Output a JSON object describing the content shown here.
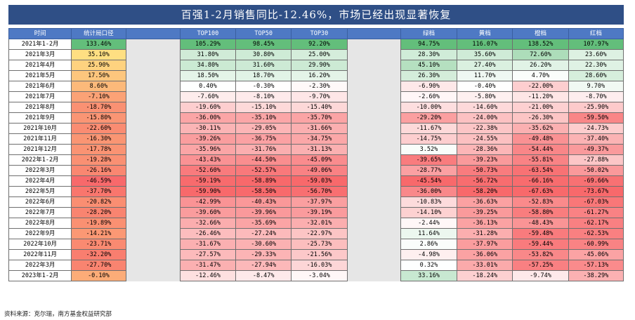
{
  "title": "百强1-2月销售同比-12.46%，市场已经出现显著恢复",
  "footer": "资料来源：克尔瑞，南方基金权益研究部",
  "headers": [
    "时间",
    "统计局口径",
    "TOP100",
    "TOP50",
    "TOP30",
    "绿档",
    "黄档",
    "橙档",
    "红档"
  ],
  "rows": [
    [
      "2021年1-2月",
      "133.46%",
      "105.29%",
      "98.45%",
      "92.20%",
      "94.75%",
      "116.07%",
      "138.52%",
      "107.97%"
    ],
    [
      "2021年3月",
      "35.10%",
      "31.80%",
      "30.80%",
      "25.00%",
      "28.30%",
      "35.60%",
      "72.60%",
      "23.60%"
    ],
    [
      "2021年4月",
      "25.90%",
      "34.80%",
      "31.60%",
      "29.90%",
      "45.10%",
      "27.40%",
      "26.20%",
      "22.30%"
    ],
    [
      "2021年5月",
      "17.50%",
      "18.50%",
      "18.70%",
      "16.20%",
      "26.30%",
      "11.70%",
      "4.70%",
      "28.60%"
    ],
    [
      "2021年6月",
      "8.60%",
      "0.40%",
      "-0.30%",
      "-2.30%",
      "-6.90%",
      "-0.40%",
      "-22.00%",
      "9.70%"
    ],
    [
      "2021年7月",
      "-7.10%",
      "-7.60%",
      "-8.10%",
      "-9.70%",
      "-2.60%",
      "-5.80%",
      "-11.20%",
      "-8.70%"
    ],
    [
      "2021年8月",
      "-18.70%",
      "-19.60%",
      "-15.10%",
      "-15.40%",
      "-10.00%",
      "-14.60%",
      "-21.00%",
      "-25.90%"
    ],
    [
      "2021年9月",
      "-15.80%",
      "-36.00%",
      "-35.10%",
      "-35.70%",
      "-29.20%",
      "-24.00%",
      "-26.30%",
      "-59.50%"
    ],
    [
      "2021年10月",
      "-22.60%",
      "-30.11%",
      "-29.05%",
      "-31.66%",
      "-11.67%",
      "-22.38%",
      "-35.62%",
      "-24.73%"
    ],
    [
      "2021年11月",
      "-16.30%",
      "-39.26%",
      "-36.75%",
      "-34.75%",
      "-14.75%",
      "-24.55%",
      "-49.48%",
      "-37.40%"
    ],
    [
      "2021年12月",
      "-17.78%",
      "-35.96%",
      "-31.76%",
      "-31.13%",
      "3.52%",
      "-28.36%",
      "-54.44%",
      "-49.37%"
    ],
    [
      "2022年1-2月",
      "-19.28%",
      "-43.43%",
      "-44.50%",
      "-45.09%",
      "-39.65%",
      "-39.23%",
      "-55.81%",
      "-27.88%"
    ],
    [
      "2022年3月",
      "-26.16%",
      "-52.60%",
      "-52.57%",
      "-49.06%",
      "-28.77%",
      "-50.73%",
      "-63.54%",
      "-50.02%"
    ],
    [
      "2022年4月",
      "-46.59%",
      "-59.19%",
      "-58.89%",
      "-59.03%",
      "-45.54%",
      "-56.72%",
      "-66.16%",
      "-69.66%"
    ],
    [
      "2022年5月",
      "-37.70%",
      "-59.90%",
      "-58.50%",
      "-56.70%",
      "-36.00%",
      "-58.20%",
      "-67.63%",
      "-73.67%"
    ],
    [
      "2022年6月",
      "-20.82%",
      "-42.99%",
      "-40.43%",
      "-37.97%",
      "-10.83%",
      "-36.63%",
      "-52.83%",
      "-67.03%"
    ],
    [
      "2022年7月",
      "-28.20%",
      "-39.60%",
      "-39.96%",
      "-39.19%",
      "-14.10%",
      "-39.25%",
      "-58.80%",
      "-61.27%"
    ],
    [
      "2022年8月",
      "-19.89%",
      "-32.66%",
      "-35.69%",
      "-32.01%",
      "-2.44%",
      "-36.13%",
      "-48.43%",
      "-62.17%"
    ],
    [
      "2022年9月",
      "-14.21%",
      "-26.46%",
      "-27.24%",
      "-22.97%",
      "11.64%",
      "-31.28%",
      "-59.48%",
      "-62.53%"
    ],
    [
      "2022年10月",
      "-23.71%",
      "-31.67%",
      "-30.60%",
      "-25.73%",
      "2.86%",
      "-37.97%",
      "-59.44%",
      "-60.99%"
    ],
    [
      "2022年11月",
      "-32.20%",
      "-27.57%",
      "-29.33%",
      "-21.56%",
      "-4.98%",
      "-36.06%",
      "-53.82%",
      "-45.06%"
    ],
    [
      "2022年3月",
      "-27.70%",
      "-31.47%",
      "-27.94%",
      "-16.03%",
      "0.32%",
      "-33.01%",
      "-57.25%",
      "-57.13%"
    ],
    [
      "2023年1-2月",
      "-0.10%",
      "-12.46%",
      "-8.47%",
      "-3.04%",
      "33.16%",
      "-18.24%",
      "-9.74%",
      "-38.29%"
    ]
  ],
  "colors": {
    "title_bg": "#2f4f86",
    "header_bg": "#4e79c4",
    "gap": "#e6e6e6",
    "green_max": "#63be7b",
    "yellow": "#ffeb84",
    "red_min": "#f8696b",
    "white": "#ffffff"
  }
}
